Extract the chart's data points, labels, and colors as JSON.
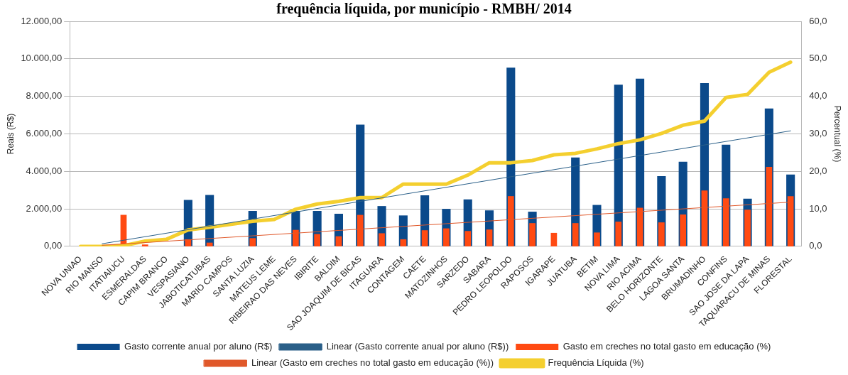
{
  "chart_data": {
    "type": "bar",
    "title": "frequência líquida, por município - RMBH/ 2014",
    "ylabel": "Reais (R$)",
    "y2label": "Percentual (%)",
    "categories": [
      "NOVA UNIAO",
      "RIO MANSO",
      "ITATIAIUCU",
      "ESMERALDAS",
      "CAPIM BRANCO",
      "VESPASIANO",
      "JABOTICATUBAS",
      "MARIO CAMPOS",
      "SANTA LUZIA",
      "MATEUS LEME",
      "RIBEIRAO DAS NEVES",
      "IBIRITE",
      "BALDIM",
      "SAO JOAQUIM DE BICAS",
      "ITAGUARA",
      "CONTAGEM",
      "CAETE",
      "MATOZINHOS",
      "SARZEDO",
      "SABARA",
      "PEDRO LEOPOLDO",
      "RAPOSOS",
      "IGARAPE",
      "JUATUBA",
      "BETIM",
      "NOVA LIMA",
      "RIO ACIMA",
      "BELO HORIZONTE",
      "LAGOA SANTA",
      "BRUMADINHO",
      "CONFINS",
      "SAO JOSE DA LAPA",
      "TAQUARACU DE MINAS",
      "FLORESTAL"
    ],
    "series": [
      {
        "name": "Gasto corrente anual por aluno (R$)",
        "color": "#0b4a8b",
        "values": [
          null,
          null,
          null,
          null,
          null,
          2480,
          2740,
          null,
          1890,
          null,
          1890,
          1890,
          1740,
          6490,
          2150,
          1650,
          2720,
          2000,
          2510,
          1920,
          9530,
          1850,
          null,
          4740,
          2210,
          8620,
          8940,
          3750,
          4510,
          8710,
          5420,
          2540,
          7350,
          3830
        ]
      },
      {
        "name": "Linear (Gasto corrente anual por aluno (R$))",
        "type": "line",
        "color": "#2a5f88",
        "x": [
          "RIO MANSO",
          "FLORESTAL"
        ],
        "values": [
          140,
          6160
        ]
      },
      {
        "name": "Gasto em creches no total gasto em educação (%)",
        "axis": "y2",
        "color": "#ff4a12",
        "values": [
          null,
          null,
          8.4,
          0.5,
          null,
          1.9,
          1.0,
          null,
          2.2,
          null,
          4.4,
          3.3,
          2.7,
          8.4,
          3.5,
          1.9,
          4.3,
          4.8,
          4.1,
          4.5,
          13.4,
          6.2,
          3.6,
          6.2,
          3.7,
          6.6,
          10.3,
          6.4,
          8.5,
          14.9,
          12.8,
          9.8,
          21.2,
          13.4
        ]
      },
      {
        "name": "Linear (Gasto em creches no total gasto em educação (%))",
        "type": "line",
        "axis": "y2",
        "color": "#e0582a",
        "x": [
          "RIO MANSO",
          "FLORESTAL"
        ],
        "values": [
          0.3,
          11.8
        ]
      },
      {
        "name": "Frequência Líquida (%)",
        "type": "line",
        "axis": "y2",
        "color": "#f4cf2f",
        "values": [
          0,
          0,
          0.2,
          1.4,
          1.9,
          4.4,
          5.1,
          5.9,
          6.7,
          7.2,
          9.9,
          11.3,
          12.0,
          13.0,
          13.0,
          16.6,
          16.6,
          16.6,
          19.0,
          22.3,
          22.3,
          22.9,
          24.4,
          24.8,
          26.0,
          27.4,
          28.4,
          30.1,
          32.3,
          33.4,
          39.7,
          40.5,
          46.4,
          49.1
        ]
      }
    ],
    "ylim": [
      0,
      12000
    ],
    "yticks": [
      {
        "value": 0,
        "label": "0,00"
      },
      {
        "value": 2000,
        "label": "2.000,00"
      },
      {
        "value": 4000,
        "label": "4.000,00"
      },
      {
        "value": 6000,
        "label": "6.000,00"
      },
      {
        "value": 8000,
        "label": "8.000,00"
      },
      {
        "value": 10000,
        "label": "10.000,00"
      },
      {
        "value": 12000,
        "label": "12.000,00"
      }
    ],
    "y2lim": [
      0,
      60
    ],
    "y2ticks": [
      {
        "value": 0,
        "label": "0,0"
      },
      {
        "value": 10,
        "label": "10,0"
      },
      {
        "value": 20,
        "label": "20,0"
      },
      {
        "value": 30,
        "label": "30,0"
      },
      {
        "value": 40,
        "label": "40,0"
      },
      {
        "value": 50,
        "label": "50,0"
      },
      {
        "value": 60,
        "label": "60,0"
      }
    ],
    "grid": "y",
    "legend": "bottom",
    "marker": "none"
  }
}
